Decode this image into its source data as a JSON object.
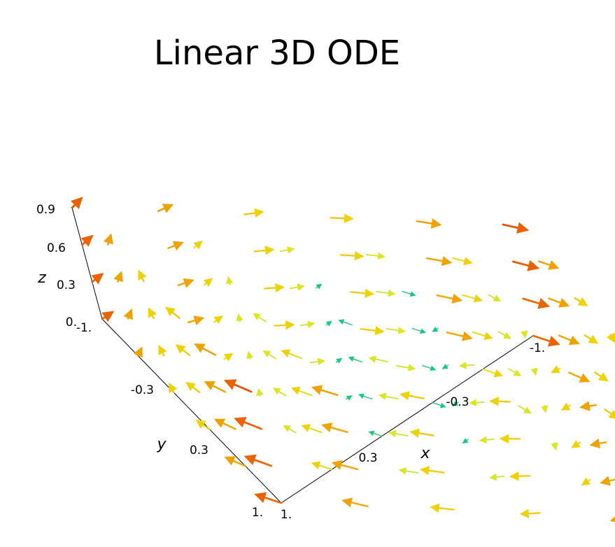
{
  "chart_data": {
    "type": "vector-field-3d",
    "title": "Linear 3D ODE",
    "xlabel": "x",
    "ylabel": "y",
    "zlabel": "z",
    "x_ticks": [
      "-1.",
      "-0.3",
      "0.3",
      "1."
    ],
    "y_ticks": [
      "-1.",
      "-0.3",
      "0.3",
      "1."
    ],
    "z_ticks": [
      "0.",
      "0.3",
      "0.6",
      "0.9"
    ],
    "xlim": [
      -1,
      1
    ],
    "ylim": [
      -1,
      1
    ],
    "zlim": [
      0,
      0.9
    ],
    "grid_xy": [
      -1,
      -0.6,
      -0.2,
      0.2,
      0.6,
      1
    ],
    "grid_z": [
      0,
      0.3,
      0.6,
      0.9
    ],
    "color_scale": [
      "#00cfcf",
      "#22c55e",
      "#d8e82a",
      "#f0d000",
      "#f08000",
      "#e01b00"
    ],
    "field": "rotation about z-axis (vx = -y, vy = x, vz = z-dependent outward drift)"
  }
}
